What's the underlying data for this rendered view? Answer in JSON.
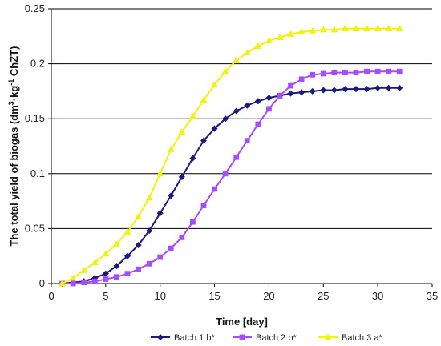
{
  "chart_data": {
    "type": "line",
    "title": "",
    "xlabel": "Time [day]",
    "ylabel_parts": {
      "pre": "The total yield of biogas (dm",
      "sup1": "3",
      "mid": "·kg",
      "sup2": "-1",
      "post": " ChZT)"
    },
    "xlim": [
      0,
      35
    ],
    "ylim": [
      0,
      0.25
    ],
    "x_ticks": [
      "0",
      "5",
      "10",
      "15",
      "20",
      "25",
      "30",
      "35"
    ],
    "y_ticks": [
      "0",
      "0.05",
      "0.1",
      "0.15",
      "0.2",
      "0.25"
    ],
    "grid": "horizontal",
    "legend_position": "bottom",
    "series": [
      {
        "name": "Batch 1 b*",
        "color": "#1a1a7a",
        "marker": "diamond",
        "x": [
          1,
          2,
          3,
          4,
          5,
          6,
          7,
          8,
          9,
          10,
          11,
          12,
          13,
          14,
          15,
          16,
          17,
          18,
          19,
          20,
          21,
          22,
          23,
          24,
          25,
          26,
          27,
          28,
          29,
          30,
          31,
          32
        ],
        "y": [
          0.0,
          0.001,
          0.002,
          0.005,
          0.009,
          0.016,
          0.025,
          0.035,
          0.048,
          0.064,
          0.08,
          0.097,
          0.114,
          0.13,
          0.141,
          0.15,
          0.157,
          0.162,
          0.166,
          0.169,
          0.171,
          0.173,
          0.174,
          0.175,
          0.176,
          0.176,
          0.177,
          0.177,
          0.177,
          0.178,
          0.178,
          0.178
        ]
      },
      {
        "name": "Batch 2 b*",
        "color": "#a64dff",
        "marker": "square",
        "x": [
          1,
          2,
          3,
          4,
          5,
          6,
          7,
          8,
          9,
          10,
          11,
          12,
          13,
          14,
          15,
          16,
          17,
          18,
          19,
          20,
          21,
          22,
          23,
          24,
          25,
          26,
          27,
          28,
          29,
          30,
          31,
          32
        ],
        "y": [
          0.0,
          0.0,
          0.001,
          0.002,
          0.004,
          0.006,
          0.009,
          0.013,
          0.018,
          0.024,
          0.032,
          0.042,
          0.056,
          0.071,
          0.086,
          0.1,
          0.115,
          0.13,
          0.145,
          0.159,
          0.171,
          0.18,
          0.186,
          0.19,
          0.191,
          0.192,
          0.192,
          0.192,
          0.193,
          0.193,
          0.193,
          0.193
        ]
      },
      {
        "name": "Batch 3 a*",
        "color": "#f2f20a",
        "marker": "triangle",
        "x": [
          1,
          2,
          3,
          4,
          5,
          6,
          7,
          8,
          9,
          10,
          11,
          12,
          13,
          14,
          15,
          16,
          17,
          18,
          19,
          20,
          21,
          22,
          23,
          24,
          25,
          26,
          27,
          28,
          29,
          30,
          31,
          32
        ],
        "y": [
          0.0,
          0.005,
          0.012,
          0.019,
          0.027,
          0.036,
          0.047,
          0.061,
          0.078,
          0.1,
          0.122,
          0.138,
          0.152,
          0.167,
          0.181,
          0.193,
          0.203,
          0.21,
          0.216,
          0.221,
          0.224,
          0.227,
          0.229,
          0.23,
          0.231,
          0.231,
          0.232,
          0.232,
          0.232,
          0.232,
          0.232,
          0.232
        ]
      }
    ]
  }
}
